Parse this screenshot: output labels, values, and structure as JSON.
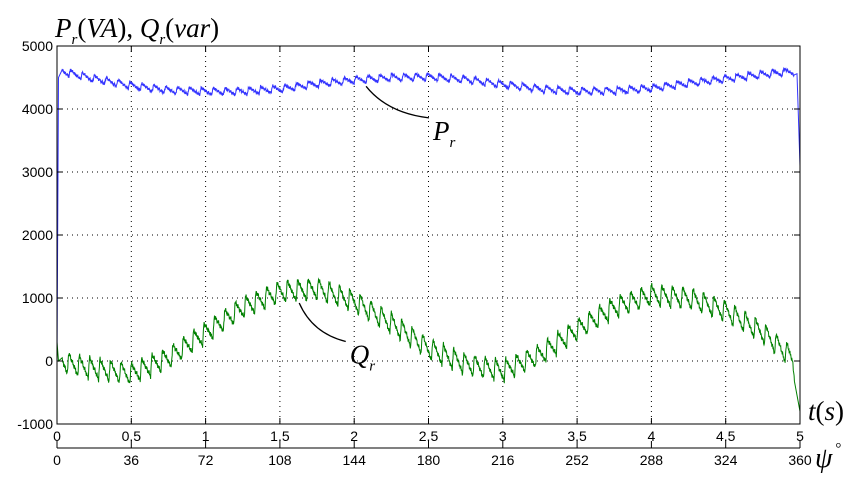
{
  "chart_data": {
    "type": "line",
    "title": "",
    "ylabel": {
      "p_main": "P",
      "p_sub": "r",
      "p_unit": "VA",
      "q_main": "Q",
      "q_sub": "r",
      "q_unit": "var"
    },
    "xlabel": {
      "main": "t",
      "unit": "s"
    },
    "x2label": {
      "main": "ψ",
      "sup": "°"
    },
    "xlim": [
      0,
      5
    ],
    "ylim": [
      -1000,
      5000
    ],
    "grid": true,
    "x_ticks": [
      "0",
      "0.5",
      "1",
      "1.5",
      "2",
      "2.5",
      "3",
      "3.5",
      "4",
      "4.5",
      "5"
    ],
    "y_ticks": [
      "-1000",
      "0",
      "1000",
      "2000",
      "3000",
      "4000",
      "5000"
    ],
    "x2_ticks": [
      "0",
      "36",
      "72",
      "108",
      "144",
      "180",
      "216",
      "252",
      "288",
      "324",
      "360"
    ],
    "series": [
      {
        "color": "#3333ff",
        "x": [
          0,
          0.01,
          0.03,
          0.25,
          0.5,
          0.75,
          1.0,
          1.25,
          1.5,
          1.75,
          2.0,
          2.25,
          2.5,
          2.75,
          3.0,
          3.25,
          3.5,
          3.75,
          4.0,
          4.25,
          4.5,
          4.75,
          4.95,
          4.98,
          5.0
        ],
        "values": [
          0,
          4500,
          4600,
          4480,
          4370,
          4300,
          4280,
          4280,
          4320,
          4400,
          4460,
          4500,
          4510,
          4470,
          4390,
          4320,
          4280,
          4290,
          4330,
          4410,
          4480,
          4550,
          4600,
          4560,
          3100
        ]
      },
      {
        "color": "#008000",
        "x": [
          0,
          0.01,
          0.2,
          0.5,
          0.75,
          1.0,
          1.25,
          1.5,
          1.75,
          2.0,
          2.25,
          2.5,
          2.75,
          3.0,
          3.25,
          3.5,
          3.75,
          4.0,
          4.25,
          4.5,
          4.75,
          4.95,
          5.0
        ],
        "values": [
          300,
          0,
          -100,
          -200,
          50,
          450,
          850,
          1100,
          1150,
          950,
          600,
          200,
          -50,
          -150,
          100,
          500,
          850,
          1050,
          1000,
          800,
          450,
          50,
          -800
        ]
      }
    ],
    "annotations": [
      {
        "text_main": "P",
        "text_sub": "r",
        "x": 2.53,
        "y": 3510,
        "arrow_to": [
          2.08,
          4360
        ]
      },
      {
        "text_main": "Q",
        "text_sub": "r",
        "x": 1.97,
        "y": -40,
        "arrow_to": [
          1.63,
          920
        ]
      }
    ]
  }
}
